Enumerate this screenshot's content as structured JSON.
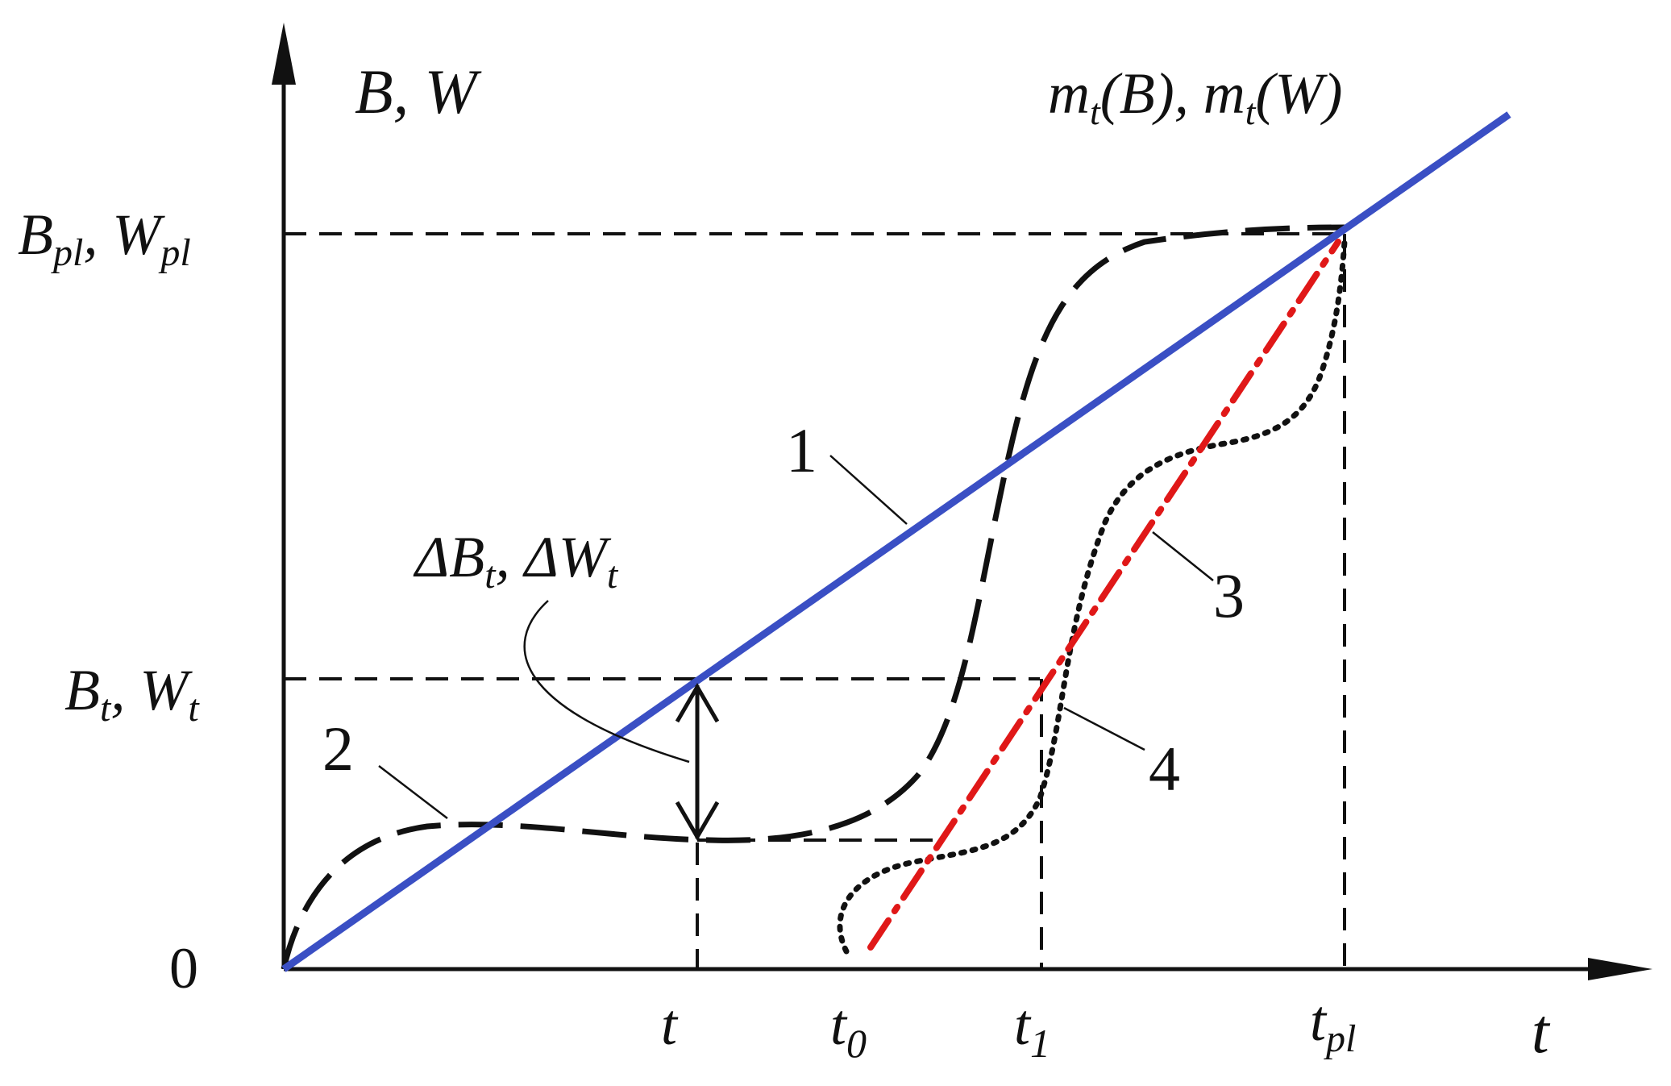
{
  "axes": {
    "y_label": "B, W",
    "x_label": "t",
    "origin_label": "0"
  },
  "y_ticks": [
    {
      "main": "B",
      "sub": "pl",
      "main2": "W",
      "sub2": "pl"
    },
    {
      "main": "B",
      "sub": "t",
      "main2": "W",
      "sub2": "t"
    }
  ],
  "x_ticks": [
    {
      "main": "t",
      "sub": ""
    },
    {
      "main": "t",
      "sub": "0"
    },
    {
      "main": "t",
      "sub": "1"
    },
    {
      "main": "t",
      "sub": "pl"
    }
  ],
  "top_right_label": {
    "f": "m",
    "sub": "t",
    "arg1": "B",
    "arg2": "W"
  },
  "delta_label": {
    "sym": "Δ",
    "a": "B",
    "sub_a": "t",
    "b": "W",
    "sub_b": "t"
  },
  "curve_labels": [
    "1",
    "2",
    "3",
    "4"
  ],
  "colors": {
    "axis": "#111111",
    "curve1": "#3a4fc4",
    "curve2": "#111111",
    "curve3": "#111111",
    "curve4": "#e01818",
    "guides": "#111111"
  }
}
